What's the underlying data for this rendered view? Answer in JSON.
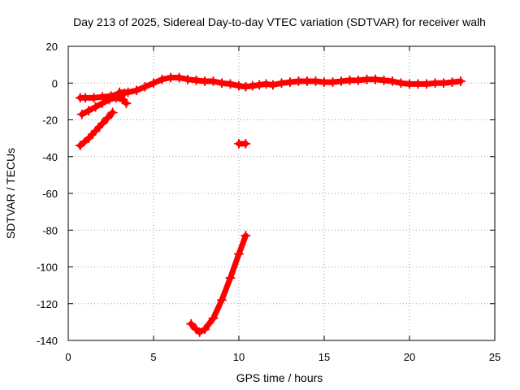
{
  "chart_data": {
    "type": "scatter",
    "title": "Day 213 of 2025, Sidereal Day-to-day VTEC variation (SDTVAR) for receiver walh",
    "xlabel": "GPS time / hours",
    "ylabel": "SDTVAR / TECUs",
    "xlim": [
      0,
      25
    ],
    "ylim": [
      -140,
      20
    ],
    "xticks": [
      0,
      5,
      10,
      15,
      20,
      25
    ],
    "yticks": [
      20,
      0,
      -20,
      -40,
      -60,
      -80,
      -100,
      -120,
      -140
    ],
    "grid": true,
    "color": "#ff0000",
    "series": [
      {
        "name": "main-track",
        "points": [
          [
            3.0,
            -5
          ],
          [
            3.5,
            -5
          ],
          [
            4.0,
            -4
          ],
          [
            4.5,
            -2
          ],
          [
            5.0,
            0
          ],
          [
            5.5,
            2
          ],
          [
            6.0,
            3
          ],
          [
            6.5,
            3
          ],
          [
            7.0,
            2
          ],
          [
            7.5,
            1.5
          ],
          [
            8.0,
            1
          ],
          [
            8.5,
            1
          ],
          [
            9.0,
            0
          ],
          [
            9.5,
            -0.5
          ],
          [
            10.0,
            -1.5
          ],
          [
            10.4,
            -2
          ],
          [
            10.8,
            -1.5
          ],
          [
            11.2,
            -1
          ],
          [
            11.6,
            -0.5
          ],
          [
            12.0,
            -1
          ],
          [
            12.5,
            0
          ],
          [
            13.0,
            0.5
          ],
          [
            13.5,
            1
          ],
          [
            14.0,
            1
          ],
          [
            14.5,
            1
          ],
          [
            15.0,
            0.5
          ],
          [
            15.5,
            0.5
          ],
          [
            16.0,
            1
          ],
          [
            16.5,
            1.5
          ],
          [
            17.0,
            1.5
          ],
          [
            17.5,
            2
          ],
          [
            18.0,
            2
          ],
          [
            18.5,
            1.5
          ],
          [
            19.0,
            1
          ],
          [
            19.5,
            0
          ],
          [
            20.0,
            -0.5
          ],
          [
            20.5,
            -0.5
          ],
          [
            21.0,
            -0.5
          ],
          [
            21.5,
            0
          ],
          [
            22.0,
            0
          ],
          [
            22.5,
            0.5
          ],
          [
            23.0,
            1
          ]
        ]
      },
      {
        "name": "upper-cluster",
        "points": [
          [
            0.7,
            -8
          ],
          [
            1.0,
            -8
          ],
          [
            1.5,
            -8
          ],
          [
            2.0,
            -7.5
          ],
          [
            2.5,
            -7
          ],
          [
            3.0,
            -6
          ],
          [
            3.3,
            -5.5
          ]
        ]
      },
      {
        "name": "descending-arc",
        "points": [
          [
            0.8,
            -17
          ],
          [
            1.2,
            -15
          ],
          [
            1.6,
            -13
          ],
          [
            2.0,
            -11
          ],
          [
            2.4,
            -9
          ],
          [
            2.8,
            -8
          ],
          [
            3.2,
            -9
          ],
          [
            3.4,
            -11
          ]
        ]
      },
      {
        "name": "lower-ramp",
        "points": [
          [
            0.7,
            -34
          ],
          [
            1.2,
            -30
          ],
          [
            1.6,
            -26
          ],
          [
            2.0,
            -22
          ],
          [
            2.3,
            -19
          ],
          [
            2.6,
            -16
          ]
        ]
      },
      {
        "name": "isolated-point",
        "points": [
          [
            10.0,
            -33
          ],
          [
            10.4,
            -33
          ]
        ]
      },
      {
        "name": "deep-trough",
        "points": [
          [
            7.2,
            -131
          ],
          [
            7.5,
            -134
          ],
          [
            7.7,
            -135.5
          ],
          [
            8.0,
            -134
          ],
          [
            8.5,
            -128
          ],
          [
            9.0,
            -118
          ],
          [
            9.5,
            -106
          ],
          [
            10.0,
            -93
          ],
          [
            10.4,
            -83
          ]
        ]
      }
    ]
  }
}
